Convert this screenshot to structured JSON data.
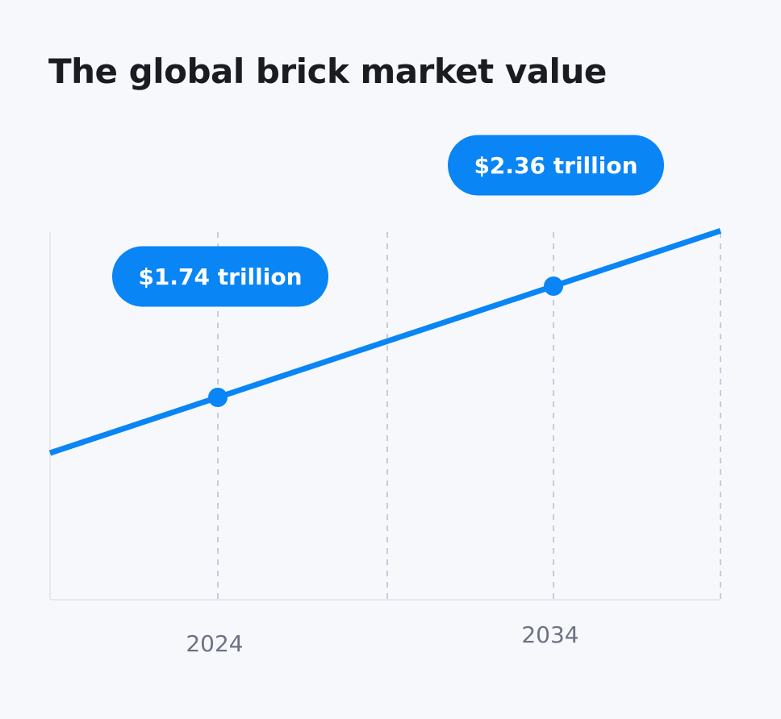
{
  "chart_data": {
    "type": "line",
    "title": "The global brick market value",
    "xlabel": "",
    "ylabel": "",
    "x_ticks": [
      "2024",
      "2034"
    ],
    "series": [
      {
        "points": [
          {
            "x": 2024,
            "y": 1.74,
            "label": "$1.74 trillion"
          },
          {
            "x": 2034,
            "y": 2.36,
            "label": "$2.36 trillion"
          }
        ]
      }
    ],
    "grid": true,
    "colors": {
      "line": "#0a85f5",
      "callout": "#0a85f5",
      "grid": "#c9cbdc",
      "axis": "#e6e8f0",
      "background": "#f7f8fc"
    }
  }
}
